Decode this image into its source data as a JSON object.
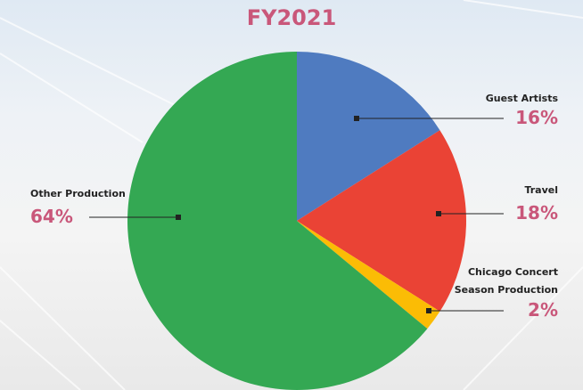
{
  "chart_data": {
    "type": "pie",
    "title": "FY2021",
    "categories": [
      "Guest Artists",
      "Travel",
      "Chicago Concert Season Production",
      "Other Production"
    ],
    "values": [
      16,
      18,
      2,
      64
    ],
    "value_labels": [
      "16%",
      "18%",
      "2%",
      "64%"
    ],
    "colors": [
      "#4f7bc0",
      "#ea4335",
      "#fbbc05",
      "#34a853"
    ]
  }
}
